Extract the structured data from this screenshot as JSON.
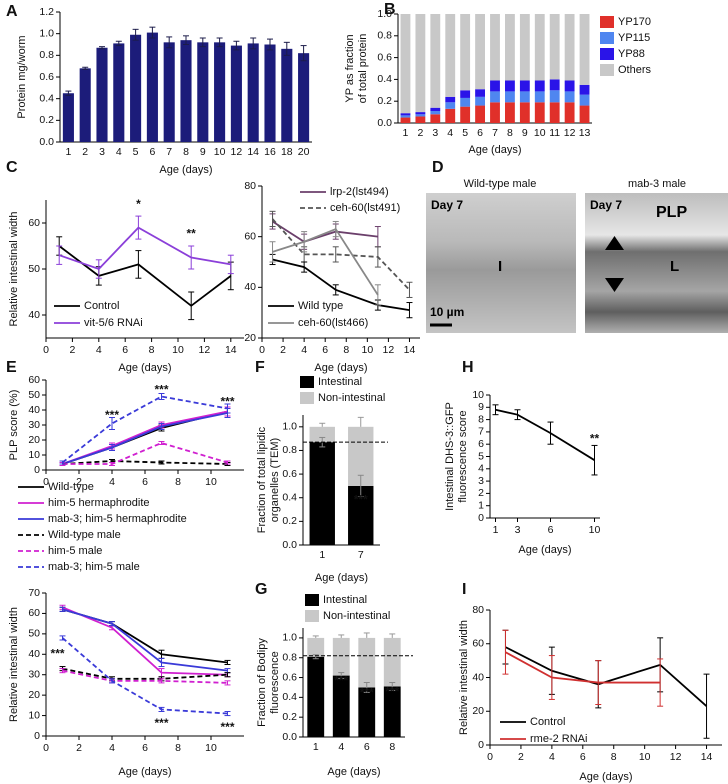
{
  "chart_data": [
    {
      "panel": "A",
      "type": "bar",
      "ylabel": "Protein mg/worm",
      "xlabel": "Age (days)",
      "color": "#1c1c7a",
      "error_color": "#1c1c4a",
      "categories": [
        1,
        2,
        3,
        4,
        5,
        6,
        7,
        8,
        9,
        10,
        12,
        14,
        16,
        18,
        20
      ],
      "values": [
        0.45,
        0.68,
        0.87,
        0.91,
        0.99,
        1.01,
        0.92,
        0.94,
        0.92,
        0.92,
        0.89,
        0.91,
        0.9,
        0.86,
        0.82
      ],
      "errors": [
        0.02,
        0.01,
        0.01,
        0.02,
        0.05,
        0.05,
        0.05,
        0.04,
        0.04,
        0.04,
        0.04,
        0.05,
        0.05,
        0.06,
        0.07
      ],
      "ylim": [
        0,
        1.2
      ],
      "yticks": [
        {
          "value": 0,
          "label": "0.0"
        },
        0.2,
        0.4,
        0.6,
        0.8,
        {
          "value": 1,
          "label": "1.0"
        },
        1.2
      ]
    },
    {
      "panel": "B",
      "type": "bar",
      "ylabel": [
        "YP as fraction",
        "of total protein"
      ],
      "xlabel": "Age (days)",
      "categories": [
        1,
        2,
        3,
        4,
        5,
        6,
        7,
        8,
        9,
        10,
        11,
        12,
        13
      ],
      "series": [
        {
          "name": "YP170",
          "color": "#e0302a",
          "values": [
            0.05,
            0.06,
            0.08,
            0.13,
            0.15,
            0.16,
            0.19,
            0.19,
            0.19,
            0.19,
            0.19,
            0.19,
            0.16
          ]
        },
        {
          "name": "YP115",
          "color": "#4f86f0",
          "values": [
            0.02,
            0.02,
            0.03,
            0.06,
            0.08,
            0.08,
            0.1,
            0.1,
            0.1,
            0.1,
            0.11,
            0.1,
            0.1
          ]
        },
        {
          "name": "YP88",
          "color": "#2a14e8",
          "values": [
            0.02,
            0.02,
            0.03,
            0.05,
            0.07,
            0.07,
            0.1,
            0.1,
            0.1,
            0.1,
            0.1,
            0.1,
            0.09
          ]
        },
        {
          "name": "Others",
          "color": "#c8c8c8",
          "values": [
            0.91,
            0.9,
            0.86,
            0.76,
            0.7,
            0.69,
            0.61,
            0.61,
            0.61,
            0.61,
            0.6,
            0.61,
            0.65
          ]
        }
      ],
      "ylim": [
        0,
        1
      ],
      "yticks": [
        {
          "value": 0,
          "label": "0.0"
        },
        0.2,
        0.4,
        0.6,
        0.8,
        {
          "value": 1,
          "label": "1.0"
        }
      ]
    },
    {
      "panel": "C",
      "type": "line",
      "ylabel": "Relative intestinal width",
      "xlabel": "Age (days)",
      "annotations": [
        "*",
        "**"
      ],
      "annotation_color": "#8b3fd9",
      "x": [
        1,
        4,
        7,
        11,
        14
      ],
      "series": [
        {
          "name": "Control",
          "color": "#000000",
          "values": [
            55,
            48.5,
            51,
            42,
            48.5
          ],
          "errors": [
            2,
            2,
            3,
            3,
            3
          ]
        },
        {
          "name": "vit-5/6 RNAi",
          "color": "#8b3fd9",
          "values": [
            53,
            50,
            59,
            52.5,
            51
          ],
          "errors": [
            2,
            2,
            2.5,
            2.5,
            2
          ]
        }
      ],
      "xlim": [
        0,
        15
      ],
      "xticks": [
        0,
        2,
        4,
        6,
        8,
        10,
        12,
        14
      ],
      "ylim": [
        35,
        65
      ],
      "yticks": [
        40,
        50,
        60
      ]
    },
    {
      "type": "line",
      "xlabel": "Age (days)",
      "x": [
        1,
        4,
        7,
        11,
        14
      ],
      "series": [
        {
          "name": "lrp-2(lst494)",
          "color": "#6b3f6b",
          "values": [
            66,
            58,
            62,
            60,
            null
          ],
          "errors": [
            3,
            3,
            3,
            4,
            null
          ]
        },
        {
          "name": "ceh-60(lst491)",
          "color": "#555555",
          "dash": true,
          "values": [
            67,
            53,
            53,
            52,
            39
          ],
          "errors": [
            3,
            3,
            3,
            4,
            3
          ]
        },
        {
          "name": "Wild type",
          "color": "#000000",
          "values": [
            51,
            48,
            39,
            33,
            31
          ],
          "errors": [
            2,
            2,
            2,
            2,
            3
          ]
        },
        {
          "name": "ceh-60(lst466)",
          "color": "#888888",
          "values": [
            54,
            58,
            63,
            37,
            null
          ],
          "errors": [
            4,
            4,
            3,
            4,
            null
          ]
        }
      ],
      "xlim": [
        0,
        15
      ],
      "xticks": [
        0,
        2,
        4,
        6,
        8,
        10,
        12,
        14
      ],
      "ylim": [
        20,
        80
      ],
      "yticks": [
        20,
        40,
        60,
        80
      ]
    },
    {
      "panel": "E",
      "type": "line",
      "ylabel": "PLP score (%)",
      "annotations": [
        "***",
        "***",
        "***"
      ],
      "annotation_color": "#3a3ad8",
      "x": [
        1,
        4,
        7,
        11
      ],
      "series": [
        {
          "name": "Wild-type",
          "color": "#000000",
          "values": [
            4,
            15,
            28,
            39
          ],
          "errors": [
            1,
            2,
            2,
            3
          ]
        },
        {
          "name": "him-5 hermaphrodite",
          "color": "#d020d0",
          "values": [
            4,
            16,
            30,
            39
          ],
          "errors": [
            1,
            2,
            2,
            3
          ]
        },
        {
          "name": "mab-3; him-5 hermaphrodite",
          "color": "#3a3ad8",
          "values": [
            4,
            15,
            29,
            38
          ],
          "errors": [
            1,
            2,
            2,
            3
          ]
        },
        {
          "name": "Wild-type male",
          "color": "#000000",
          "dash": true,
          "values": [
            4,
            6,
            5,
            4
          ],
          "errors": [
            1,
            1,
            1,
            1
          ]
        },
        {
          "name": "him-5 male",
          "color": "#d020d0",
          "dash": true,
          "values": [
            4,
            4,
            18,
            5
          ],
          "errors": [
            1,
            1,
            1,
            1
          ]
        },
        {
          "name": "mab-3; him-5 male",
          "color": "#3a3ad8",
          "dash": true,
          "values": [
            5,
            31,
            49,
            41
          ],
          "errors": [
            1,
            4,
            2,
            3
          ]
        }
      ],
      "xlim": [
        0,
        12
      ],
      "xticks": [
        0,
        2,
        4,
        6,
        8,
        10
      ],
      "ylim": [
        0,
        60
      ],
      "yticks": [
        0,
        10,
        20,
        30,
        40,
        50,
        60
      ]
    },
    {
      "type": "line",
      "ylabel": "Relative intestinal width",
      "xlabel": "Age (days)",
      "annotations": [
        "***",
        "***",
        "***"
      ],
      "annotation_color": "#3a3ad8",
      "x": [
        1,
        4,
        7,
        11
      ],
      "series": [
        {
          "color": "#000000",
          "values": [
            62,
            55,
            40,
            36
          ],
          "errors": [
            1,
            1,
            2,
            1
          ]
        },
        {
          "color": "#d020d0",
          "values": [
            63,
            53,
            31,
            30
          ],
          "errors": [
            1,
            1,
            2,
            1
          ]
        },
        {
          "color": "#3a3ad8",
          "values": [
            62,
            55,
            36,
            32
          ],
          "errors": [
            1,
            1,
            2,
            1
          ]
        },
        {
          "color": "#000000",
          "dash": true,
          "values": [
            33,
            28,
            28,
            30
          ],
          "errors": [
            1,
            1,
            1,
            1
          ]
        },
        {
          "color": "#d020d0",
          "dash": true,
          "values": [
            32,
            27,
            27,
            26
          ],
          "errors": [
            1,
            1,
            1,
            1
          ]
        },
        {
          "color": "#3a3ad8",
          "dash": true,
          "values": [
            48,
            27,
            13,
            11
          ],
          "errors": [
            1,
            1,
            1,
            1
          ]
        }
      ],
      "xlim": [
        0,
        12
      ],
      "xticks": [
        0,
        2,
        4,
        6,
        8,
        10
      ],
      "ylim": [
        0,
        70
      ],
      "yticks": [
        0,
        10,
        20,
        30,
        40,
        50,
        60,
        70
      ]
    },
    {
      "panel": "F",
      "type": "bar",
      "ylabel": [
        "Fraction of total lipidic",
        "organelles (TEM)"
      ],
      "xlabel": "Age (days)",
      "annotations": [
        "***"
      ],
      "annotation_color": "#ffffff",
      "categories": [
        1,
        7
      ],
      "reference_line": 0.87,
      "series": [
        {
          "name": "Intestinal",
          "color": "#000000",
          "values": [
            0.87,
            0.5
          ],
          "errors": [
            0.04,
            0.09
          ]
        },
        {
          "name": "Non-intestinal",
          "color": "#c8c8c8",
          "values": [
            0.13,
            0.5
          ],
          "errors": [
            0.03,
            0.08
          ]
        }
      ],
      "ylim": [
        0,
        1.1
      ],
      "yticks": [
        {
          "value": 0,
          "label": "0.0"
        },
        0.2,
        0.4,
        0.6,
        0.8,
        {
          "value": 1,
          "label": "1.0"
        }
      ]
    },
    {
      "panel": "G",
      "type": "bar",
      "ylabel": [
        "Fraction of Bodipy",
        "fluorescence"
      ],
      "xlabel": "Age (days)",
      "annotations": [
        "***",
        "***",
        "***"
      ],
      "annotation_color": "#ffffff",
      "categories": [
        1,
        4,
        6,
        8
      ],
      "reference_line": 0.82,
      "series": [
        {
          "name": "Intestinal",
          "color": "#000000",
          "values": [
            0.81,
            0.62,
            0.5,
            0.51
          ],
          "errors": [
            0.02,
            0.03,
            0.05,
            0.04
          ]
        },
        {
          "name": "Non-intestinal",
          "color": "#c8c8c8",
          "values": [
            0.19,
            0.38,
            0.5,
            0.49
          ],
          "errors": [
            0.02,
            0.03,
            0.05,
            0.04
          ]
        }
      ],
      "ylim": [
        0,
        1.1
      ],
      "yticks": [
        {
          "value": 0,
          "label": "0.0"
        },
        0.2,
        0.4,
        0.6,
        0.8,
        {
          "value": 1,
          "label": "1.0"
        }
      ]
    },
    {
      "panel": "H",
      "type": "line",
      "ylabel": [
        "Intestinal DHS-3::GFP",
        "fluorescence score"
      ],
      "xlabel": "Age (days)",
      "annotations": [
        "**"
      ],
      "annotation_color": "#000000",
      "x": [
        1,
        3,
        6,
        10
      ],
      "series": [
        {
          "color": "#000000",
          "values": [
            8.8,
            8.4,
            6.9,
            4.7
          ],
          "errors": [
            0.4,
            0.4,
            0.9,
            1.2
          ]
        }
      ],
      "xlim": [
        0.5,
        10.5
      ],
      "xticks": [
        1,
        3,
        6,
        10
      ],
      "ylim": [
        0,
        10
      ],
      "yticks": [
        0,
        1,
        2,
        3,
        4,
        5,
        6,
        7,
        8,
        9,
        10
      ]
    },
    {
      "panel": "I",
      "type": "line",
      "ylabel": "Relative intestinal width",
      "xlabel": "Age (days)",
      "x": [
        1,
        4,
        7,
        11,
        14
      ],
      "series": [
        {
          "name": "Control",
          "color": "#000000",
          "values": [
            58,
            44,
            36,
            47.5,
            23
          ],
          "errors": [
            10,
            14,
            14,
            16,
            19
          ]
        },
        {
          "name": "rme-2 RNAi",
          "color": "#d03030",
          "values": [
            55,
            40,
            37,
            37,
            null
          ],
          "errors": [
            13,
            13,
            13,
            14,
            null
          ]
        }
      ],
      "xlim": [
        0,
        15
      ],
      "xticks": [
        0,
        2,
        4,
        6,
        8,
        10,
        12,
        14
      ],
      "ylim": [
        0,
        80
      ],
      "yticks": [
        0,
        20,
        40,
        60,
        80
      ]
    }
  ],
  "image_panel": {
    "panel": "D",
    "left": {
      "title": "Wild-type male",
      "day": "Day 7",
      "label": "I",
      "scale": "10 µm"
    },
    "right": {
      "title": "mab-3 male",
      "day": "Day 7",
      "labels": [
        "PLP",
        "L"
      ]
    }
  }
}
